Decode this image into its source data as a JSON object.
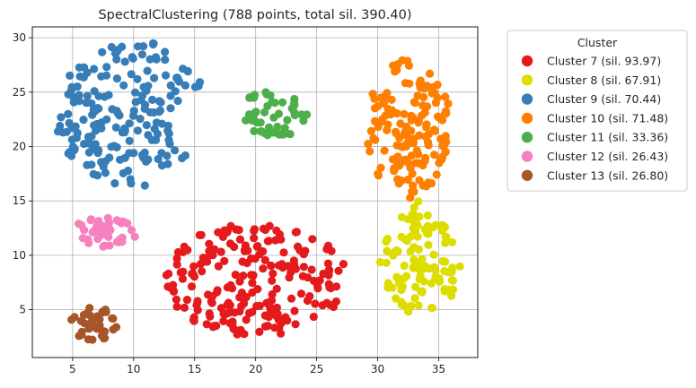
{
  "chart_data": {
    "type": "scatter",
    "title": "SpectralClustering (788 points, total sil. 390.40)",
    "xlabel": "",
    "ylabel": "",
    "xlim": [
      1.7,
      38.2
    ],
    "ylim": [
      0.6,
      31.0
    ],
    "xticks": [
      5,
      10,
      15,
      20,
      25,
      30,
      35
    ],
    "yticks": [
      5,
      10,
      15,
      20,
      25,
      30
    ],
    "grid": true,
    "legend": {
      "title": "Cluster",
      "placement": "outside-right"
    },
    "series": [
      {
        "name": "Cluster 7 (sil. 93.97)",
        "color": "#e41a1c",
        "count": 220,
        "shape": "ellipse",
        "center": [
          20.0,
          7.8
        ],
        "spread": [
          7.5,
          5.2
        ]
      },
      {
        "name": "Cluster 8 (sil. 67.91)",
        "color": "#dddd00",
        "count": 105,
        "shape": "disk",
        "center": [
          33.5,
          9.3
        ],
        "spread": [
          3.3,
          4.8
        ]
      },
      {
        "name": "Cluster 9 (sil. 70.44)",
        "color": "#377eb8",
        "count": 190,
        "shape": "crescent",
        "center": [
          10.0,
          23.0
        ],
        "spread": [
          6.5,
          6.8
        ]
      },
      {
        "name": "Cluster 10 (sil. 71.48)",
        "color": "#ff7f00",
        "count": 145,
        "shape": "disk",
        "center": [
          32.5,
          21.8
        ],
        "spread": [
          3.6,
          6.2
        ]
      },
      {
        "name": "Cluster 11 (sil. 33.36)",
        "color": "#4daf4a",
        "count": 50,
        "shape": "disk",
        "center": [
          21.5,
          23.0
        ],
        "spread": [
          3.0,
          2.2
        ]
      },
      {
        "name": "Cluster 12 (sil. 26.43)",
        "color": "#f781bf",
        "count": 40,
        "shape": "disk",
        "center": [
          7.5,
          11.9
        ],
        "spread": [
          2.8,
          1.7
        ]
      },
      {
        "name": "Cluster 13 (sil. 26.80)",
        "color": "#a65628",
        "count": 38,
        "shape": "disk",
        "center": [
          6.7,
          3.7
        ],
        "spread": [
          2.0,
          1.5
        ]
      }
    ]
  }
}
